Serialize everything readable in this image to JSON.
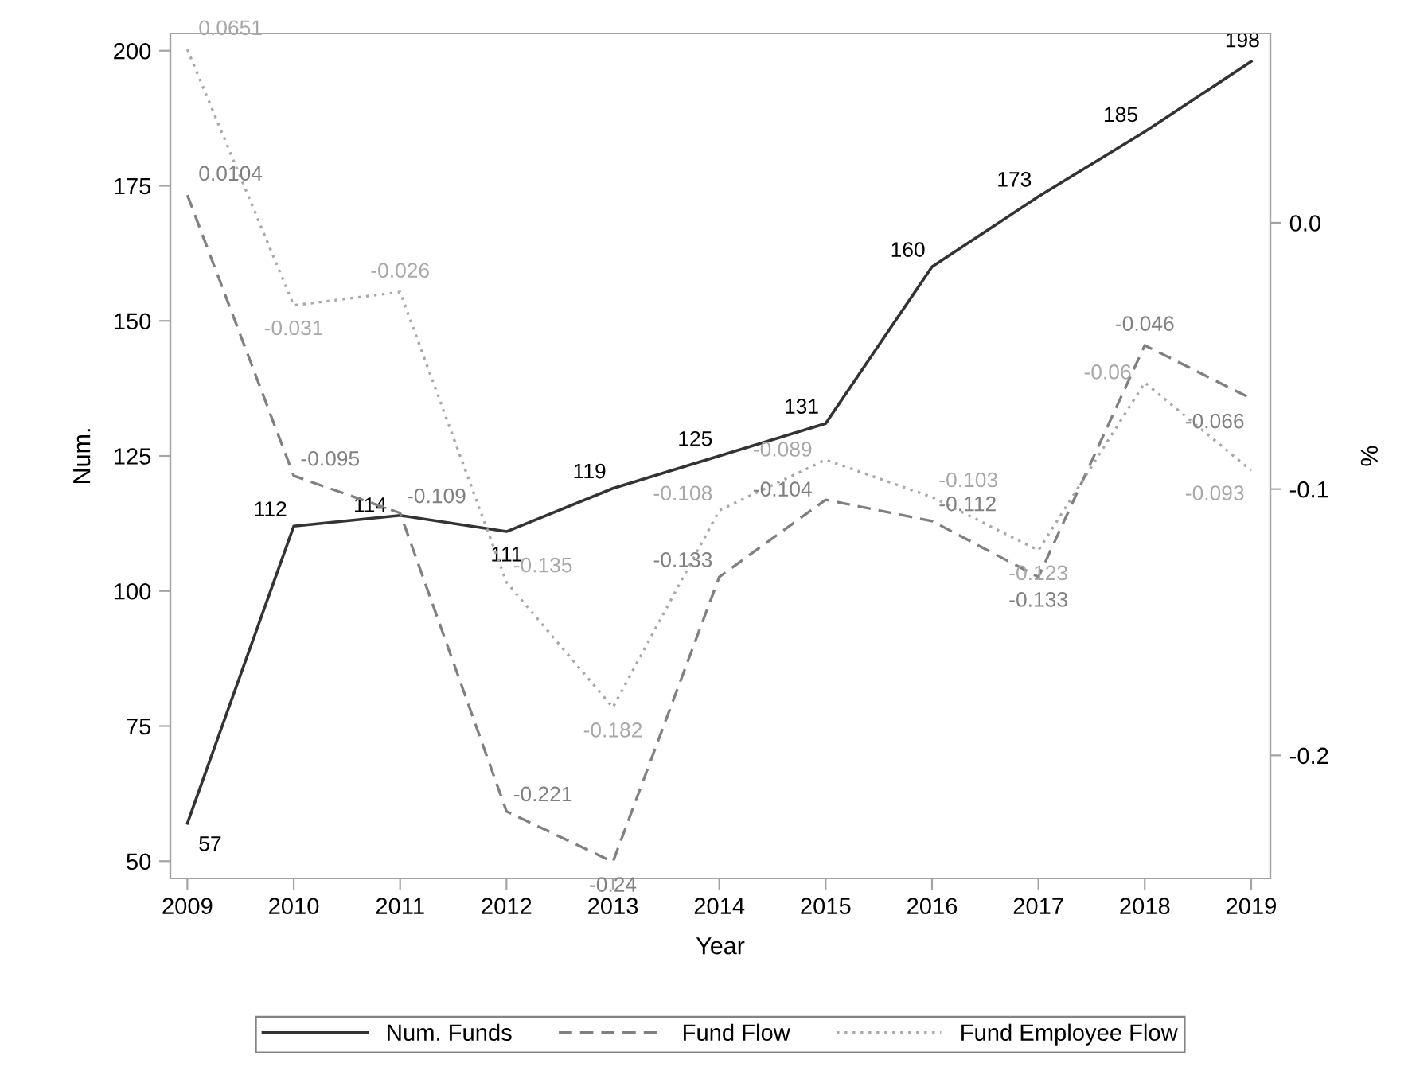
{
  "chart_data": {
    "type": "line",
    "xlabel": "Year",
    "ylabel": "Num.",
    "y2label": "%",
    "x": [
      2009,
      2010,
      2011,
      2012,
      2013,
      2014,
      2015,
      2016,
      2017,
      2018,
      2019
    ],
    "series": [
      {
        "name": "Num. Funds",
        "color": "#333333",
        "line_style": "solid",
        "values": [
          57,
          112,
          114,
          111,
          119,
          125,
          131,
          160,
          173,
          185,
          198
        ]
      },
      {
        "name": "Fund Flow",
        "color": "#808080",
        "line_style": "dashed",
        "axis": "y2",
        "values": [
          0.0104,
          -0.095,
          -0.109,
          -0.221,
          -0.24,
          -0.133,
          -0.104,
          -0.112,
          -0.133,
          -0.046,
          -0.066
        ]
      },
      {
        "name": "Fund Employee Flow",
        "color": "#a8a8a8",
        "line_style": "dotted",
        "axis": "y2",
        "values": [
          0.0651,
          -0.031,
          -0.026,
          -0.135,
          -0.182,
          -0.108,
          -0.089,
          -0.103,
          -0.123,
          -0.06,
          -0.093
        ]
      }
    ],
    "xlim": [
      2008.84,
      2019.18
    ],
    "xticks": [
      2009,
      2010,
      2011,
      2012,
      2013,
      2014,
      2015,
      2016,
      2017,
      2018,
      2019
    ],
    "ylim": [
      46.8,
      203.2
    ],
    "yticks": [
      50,
      75,
      100,
      125,
      150,
      175,
      200
    ],
    "y2lim": [
      -0.2462,
      0.0711
    ],
    "y2ticks": [
      {
        "value": -0.2,
        "label": "-0.2"
      },
      {
        "value": -0.1,
        "label": "-0.1"
      },
      {
        "value": 0,
        "label": "0.0"
      }
    ],
    "data_labels": true,
    "grid": false,
    "legend": "bottom",
    "marker": "none"
  }
}
